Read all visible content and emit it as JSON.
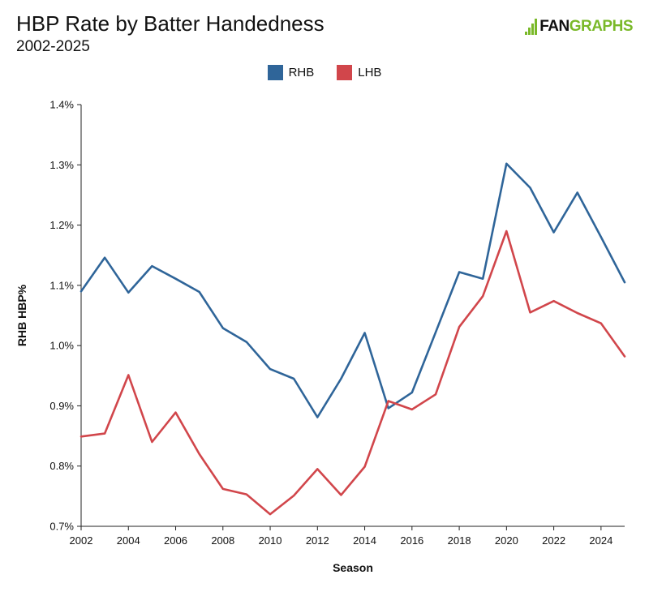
{
  "header": {
    "title": "HBP Rate by Batter Handedness",
    "subtitle": "2002-2025",
    "logo_fan": "FAN",
    "logo_graphs": "GRAPHS"
  },
  "colors": {
    "rhb": "#2f6599",
    "lhb": "#d1464b",
    "brand": "#7ab929",
    "axis": "#222222"
  },
  "chart_data": {
    "type": "line",
    "xlabel": "Season",
    "ylabel": "RHB HBP%",
    "xlim": [
      2002,
      2025
    ],
    "ylim": [
      0.7,
      1.4
    ],
    "x_ticks": [
      2002,
      2004,
      2006,
      2008,
      2010,
      2012,
      2014,
      2016,
      2018,
      2020,
      2022,
      2024
    ],
    "x_tick_labels": [
      "2002",
      "2004",
      "2006",
      "2008",
      "2010",
      "2012",
      "2014",
      "2016",
      "2018",
      "2020",
      "2022",
      "2024"
    ],
    "y_ticks": [
      0.7,
      0.8,
      0.9,
      1.0,
      1.1,
      1.2,
      1.3,
      1.4
    ],
    "y_tick_labels": [
      "0.7%",
      "0.8%",
      "0.9%",
      "1.0%",
      "1.1%",
      "1.2%",
      "1.3%",
      "1.4%"
    ],
    "legend_position": "top-center",
    "grid": false,
    "x": [
      2002,
      2003,
      2004,
      2005,
      2006,
      2007,
      2008,
      2009,
      2010,
      2011,
      2012,
      2013,
      2014,
      2015,
      2016,
      2017,
      2018,
      2019,
      2020,
      2021,
      2022,
      2023,
      2024,
      2025
    ],
    "series": [
      {
        "name": "RHB",
        "color": "#2f6599",
        "values": [
          1.09,
          1.146,
          1.088,
          1.132,
          1.111,
          1.089,
          1.029,
          1.006,
          0.961,
          0.945,
          0.881,
          0.945,
          1.021,
          0.896,
          0.922,
          1.022,
          1.122,
          1.111,
          1.302,
          1.262,
          1.188,
          1.254,
          1.18,
          1.105
        ]
      },
      {
        "name": "LHB",
        "color": "#d1464b",
        "values": [
          0.849,
          0.854,
          0.951,
          0.84,
          0.889,
          0.82,
          0.762,
          0.753,
          0.72,
          0.751,
          0.795,
          0.752,
          0.799,
          0.908,
          0.894,
          0.919,
          1.031,
          1.082,
          1.19,
          1.055,
          1.074,
          1.054,
          1.037,
          0.982
        ]
      }
    ]
  }
}
